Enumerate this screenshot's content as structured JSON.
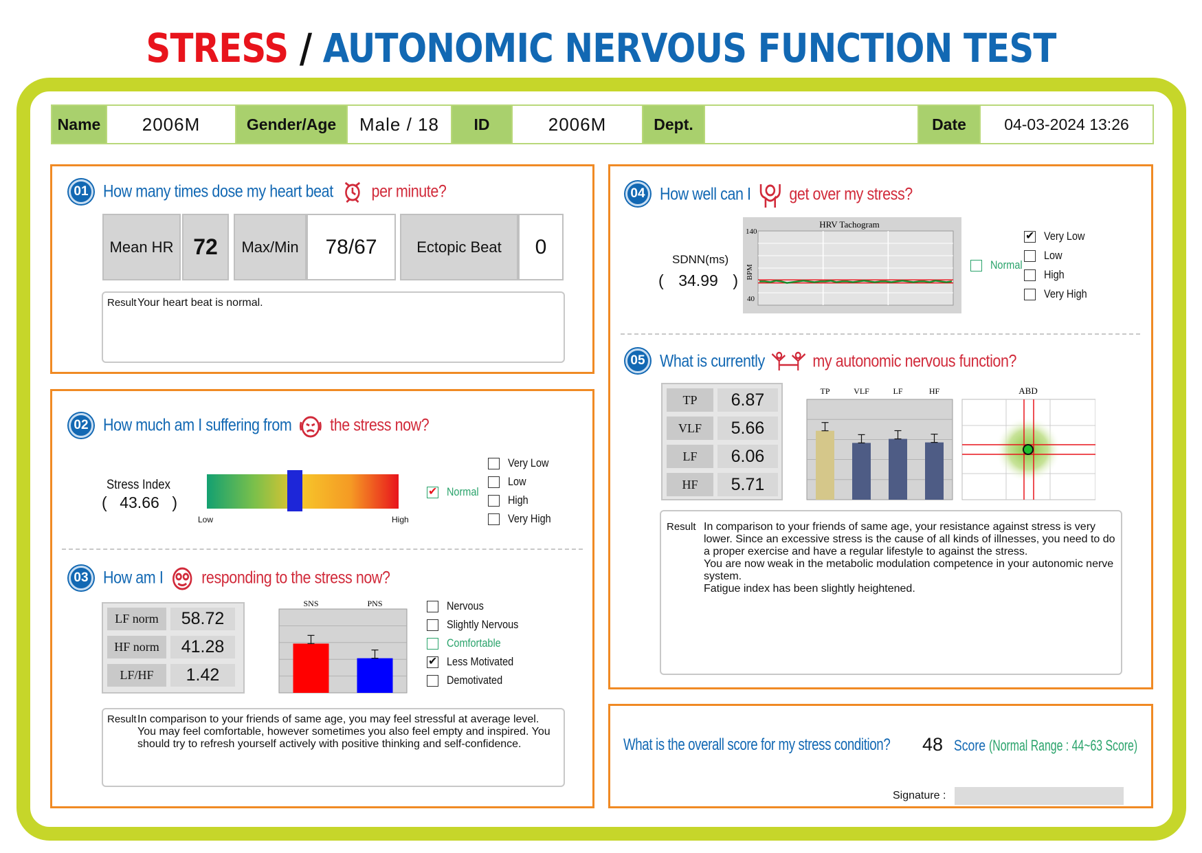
{
  "title": {
    "part1": "STRESS",
    "sep": "/",
    "part2": "AUTONOMIC NERVOUS FUNCTION TEST"
  },
  "info": {
    "name_label": "Name",
    "name_value": "2006M",
    "gender_age_label": "Gender/Age",
    "gender_age_value": "Male / 18",
    "id_label": "ID",
    "id_value": "2006M",
    "dept_label": "Dept.",
    "dept_value": "",
    "date_label": "Date",
    "date_value": "04-03-2024 13:26"
  },
  "s01": {
    "num": "01",
    "q_pre": "How many times dose my heart beat",
    "q_post": "per minute?",
    "icon": "watch-icon",
    "mean_hr_label": "Mean HR",
    "mean_hr_value": "72",
    "maxmin_label": "Max/Min",
    "maxmin_value": "78/67",
    "ectopic_label": "Ectopic Beat",
    "ectopic_value": "0",
    "result_label": "Result",
    "result_text": "Your heart beat is normal."
  },
  "s02": {
    "num": "02",
    "q_pre": "How much am I suffering from",
    "q_post": "the stress now?",
    "icon": "stressed-face-icon",
    "index_label": "Stress Index",
    "index_value": "43.66",
    "index_level": 0.46,
    "scale_low": "Low",
    "scale_high": "High",
    "normal_label": "Normal",
    "normal_checked": true,
    "options": [
      {
        "label": "Very Low",
        "checked": false
      },
      {
        "label": "Low",
        "checked": false
      },
      {
        "label": "High",
        "checked": false
      },
      {
        "label": "Very High",
        "checked": false
      }
    ]
  },
  "s03": {
    "num": "03",
    "q_pre": "How am I",
    "q_post": "responding to the stress now?",
    "icon": "dizzy-face-icon",
    "rows": [
      {
        "label": "LF norm",
        "value": "58.72"
      },
      {
        "label": "HF norm",
        "value": "41.28"
      },
      {
        "label": "LF/HF",
        "value": "1.42"
      }
    ],
    "options": [
      {
        "label": "Nervous",
        "checked": false,
        "green": false
      },
      {
        "label": "Slightly Nervous",
        "checked": false,
        "green": false
      },
      {
        "label": "Comfortable",
        "checked": false,
        "green": true
      },
      {
        "label": "Less Motivated",
        "checked": true,
        "green": false
      },
      {
        "label": "Demotivated",
        "checked": false,
        "green": false
      }
    ],
    "result_label": "Result",
    "result_text": "In comparison to your friends of same age, you may feel stressful at average level. You may feel comfortable, however sometimes you also feel empty and inspired. You should try to refresh yourself actively with positive thinking and self-confidence."
  },
  "s04": {
    "num": "04",
    "q_pre": "How well can I",
    "q_post": "get over my stress?",
    "icon": "person-raising-hands-icon",
    "sdnn_label": "SDNN(ms)",
    "sdnn_value": "34.99",
    "tachogram_title": "HRV Tachogram",
    "tachogram_ylabel": "BPM",
    "tachogram_ymax": "140",
    "tachogram_ymin": "40",
    "normal_label": "Normal",
    "normal_checked": false,
    "options": [
      {
        "label": "Very Low",
        "checked": true
      },
      {
        "label": "Low",
        "checked": false
      },
      {
        "label": "High",
        "checked": false
      },
      {
        "label": "Very High",
        "checked": false
      }
    ]
  },
  "s05": {
    "num": "05",
    "q_pre": "What is currently",
    "q_post": "my autonomic nervous function?",
    "icon": "balance-people-icon",
    "rows": [
      {
        "label": "TP",
        "value": "6.87"
      },
      {
        "label": "VLF",
        "value": "5.66"
      },
      {
        "label": "LF",
        "value": "6.06"
      },
      {
        "label": "HF",
        "value": "5.71"
      }
    ],
    "abd_label": "ABD",
    "result_label": "Result",
    "result_lines": [
      "In comparison to your friends of same age, your resistance against stress is very lower. Since an excessive stress is the cause of all kinds of illnesses, you need to do a proper exercise and have a regular lifestyle to against the stress.",
      "You are now weak in the metabolic modulation competence in your autonomic nerve system.",
      "Fatigue index has been slightly heightened."
    ]
  },
  "score": {
    "question": "What is the overall score for my stress condition?",
    "value": "48",
    "unit": "Score",
    "range": "(Normal Range : 44~63  Score)",
    "signature_label": "Signature :"
  },
  "chart_data": [
    {
      "type": "bar",
      "categories": [
        "SNS",
        "PNS"
      ],
      "values": [
        58.72,
        41.28
      ],
      "colors": [
        "#ff0000",
        "#0000ff"
      ],
      "ylim": [
        0,
        100
      ]
    },
    {
      "type": "bar",
      "categories": [
        "TP",
        "VLF",
        "LF",
        "HF"
      ],
      "values": [
        6.87,
        5.66,
        6.06,
        5.71
      ],
      "colors": [
        "#d5c78a",
        "#4e5c85",
        "#4e5c85",
        "#4e5c85"
      ],
      "ylim": [
        0,
        10
      ]
    },
    {
      "type": "line",
      "title": "HRV Tachogram",
      "ylabel": "BPM",
      "ylim": [
        40,
        140
      ],
      "values": [
        72,
        72,
        71,
        73,
        72,
        70,
        71,
        72,
        73,
        72,
        71,
        72,
        72,
        73,
        71,
        72,
        72,
        71,
        72,
        73,
        72,
        71,
        72,
        72,
        71,
        72,
        73,
        72,
        71,
        72,
        72,
        71,
        73,
        72,
        71,
        72
      ]
    }
  ]
}
